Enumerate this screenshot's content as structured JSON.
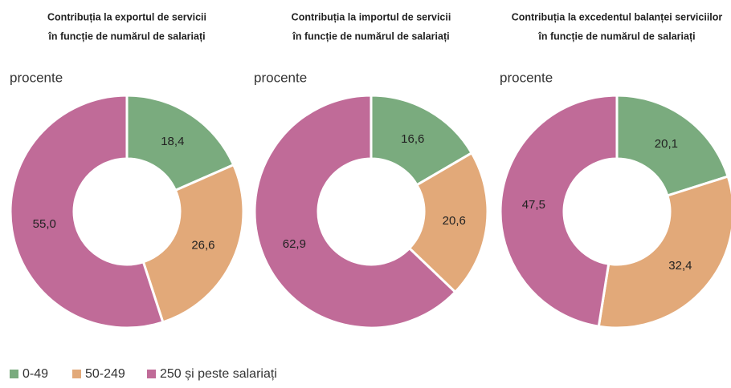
{
  "legend": {
    "labels": [
      "0-49",
      "50-249",
      "250 și peste salariați"
    ],
    "colors": [
      "#7aab7e",
      "#e2a979",
      "#c06b98"
    ]
  },
  "chart_data": [
    {
      "type": "donut",
      "title": [
        "Contribuția la exportul de servicii",
        "în funcție de numărul de salariați"
      ],
      "unit": "procente",
      "values": [
        18.4,
        26.6,
        55.0
      ],
      "value_labels": [
        "18,4",
        "26,6",
        "55,0"
      ]
    },
    {
      "type": "donut",
      "title": [
        "Contribuția la importul de servicii",
        "în funcție de numărul de salariați"
      ],
      "unit": "procente",
      "values": [
        16.6,
        20.6,
        62.9
      ],
      "value_labels": [
        "16,6",
        "20,6",
        "62,9"
      ]
    },
    {
      "type": "donut",
      "title": [
        "Contribuția la excedentul balanței serviciilor",
        "în funcție de numărul de salariați"
      ],
      "unit": "procente",
      "values": [
        20.1,
        32.4,
        47.5
      ],
      "value_labels": [
        "20,1",
        "32,4",
        "47,5"
      ]
    }
  ]
}
